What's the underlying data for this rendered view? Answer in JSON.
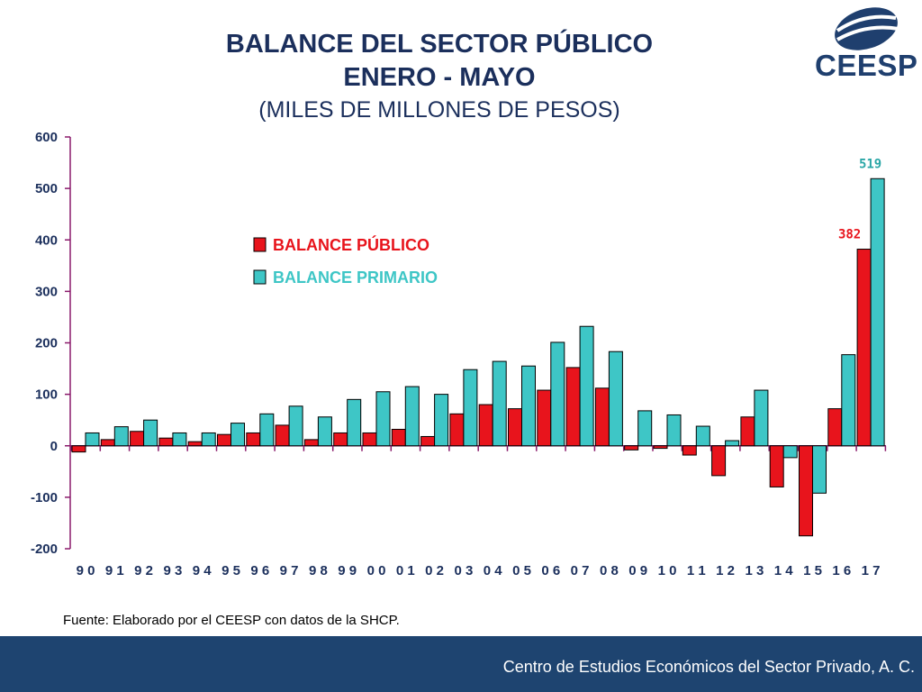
{
  "header": {
    "title_line1": "BALANCE DEL SECTOR PÚBLICO",
    "title_line2": "ENERO - MAYO",
    "subtitle": "(MILES DE MILLONES DE PESOS)"
  },
  "logo": {
    "text": "CEESP",
    "icon": "ceesp-globe-icon"
  },
  "source": "Fuente: Elaborado por el CEESP con datos de la SHCP.",
  "footer": {
    "text": "Centro de Estudios Económicos del Sector Privado, A. C."
  },
  "chart_data": {
    "type": "bar",
    "categories": [
      "90",
      "91",
      "92",
      "93",
      "94",
      "95",
      "96",
      "97",
      "98",
      "99",
      "00",
      "01",
      "02",
      "03",
      "04",
      "05",
      "06",
      "07",
      "08",
      "09",
      "10",
      "11",
      "12",
      "13",
      "14",
      "15",
      "16",
      "17"
    ],
    "category_labels": [
      "9 0",
      "9 1",
      "9 2",
      "9 3",
      "9 4",
      "9 5",
      "9 6",
      "9 7",
      "9 8",
      "9 9",
      "0 0",
      "0 1",
      "0 2",
      "0 3",
      "0 4",
      "0 5",
      "0 6",
      "0 7",
      "0 8",
      "0 9",
      "1 0",
      "1 1",
      "1 2",
      "1 3",
      "1 4",
      "1 5",
      "1 6",
      "1 7"
    ],
    "series": [
      {
        "name": "BALANCE PÚBLICO",
        "color": "#e8141c",
        "values": [
          -12,
          12,
          28,
          15,
          8,
          22,
          25,
          40,
          12,
          25,
          25,
          32,
          18,
          62,
          80,
          72,
          108,
          152,
          112,
          -8,
          -5,
          -18,
          -58,
          56,
          -80,
          -175,
          72,
          382
        ]
      },
      {
        "name": "BALANCE PRIMARIO",
        "color": "#3ec6c6",
        "values": [
          25,
          37,
          50,
          25,
          25,
          44,
          62,
          77,
          56,
          90,
          105,
          115,
          100,
          148,
          164,
          155,
          201,
          232,
          183,
          68,
          60,
          38,
          10,
          108,
          -23,
          -92,
          177,
          519
        ]
      }
    ],
    "data_labels": [
      {
        "series": "BALANCE PÚBLICO",
        "category": "17",
        "text": "382"
      },
      {
        "series": "BALANCE PRIMARIO",
        "category": "17",
        "text": "519"
      }
    ],
    "yticks": [
      "600",
      "500",
      "400",
      "300",
      "200",
      "100",
      "0",
      "-100",
      "-200"
    ],
    "ylim": [
      -200,
      600
    ],
    "grid": false,
    "legend": "upper-left"
  }
}
